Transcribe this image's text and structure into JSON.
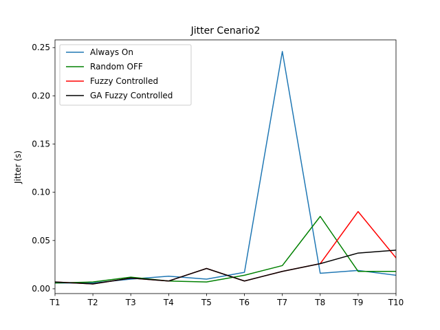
{
  "chart_data": {
    "type": "line",
    "title": "Jitter Cenario2",
    "xlabel": "",
    "ylabel": "Jitter (s)",
    "categories": [
      "T1",
      "T2",
      "T3",
      "T4",
      "T5",
      "T6",
      "T7",
      "T8",
      "T9",
      "T10"
    ],
    "ylim": [
      -0.005,
      0.258
    ],
    "yticks": [
      0.0,
      0.05,
      0.1,
      0.15,
      0.2,
      0.25
    ],
    "ytick_labels": [
      "0.00",
      "0.05",
      "0.10",
      "0.15",
      "0.20",
      "0.25"
    ],
    "legend_position": "top-left",
    "grid": false,
    "series": [
      {
        "name": "Always On",
        "color": "#1f77b4",
        "values": [
          0.006,
          0.006,
          0.01,
          0.013,
          0.01,
          0.017,
          0.246,
          0.016,
          0.019,
          0.014
        ]
      },
      {
        "name": "Random OFF",
        "color": "#008000",
        "values": [
          0.006,
          0.007,
          0.012,
          0.008,
          0.007,
          0.014,
          0.024,
          0.075,
          0.018,
          0.018
        ]
      },
      {
        "name": "Fuzzy Controlled",
        "color": "#ff0000",
        "values": [
          0.007,
          0.005,
          0.011,
          0.008,
          0.021,
          0.008,
          0.018,
          0.026,
          0.08,
          0.032
        ]
      },
      {
        "name": "GA Fuzzy Controlled",
        "color": "#000000",
        "values": [
          0.007,
          0.005,
          0.011,
          0.008,
          0.021,
          0.008,
          0.018,
          0.026,
          0.037,
          0.04
        ]
      }
    ]
  }
}
